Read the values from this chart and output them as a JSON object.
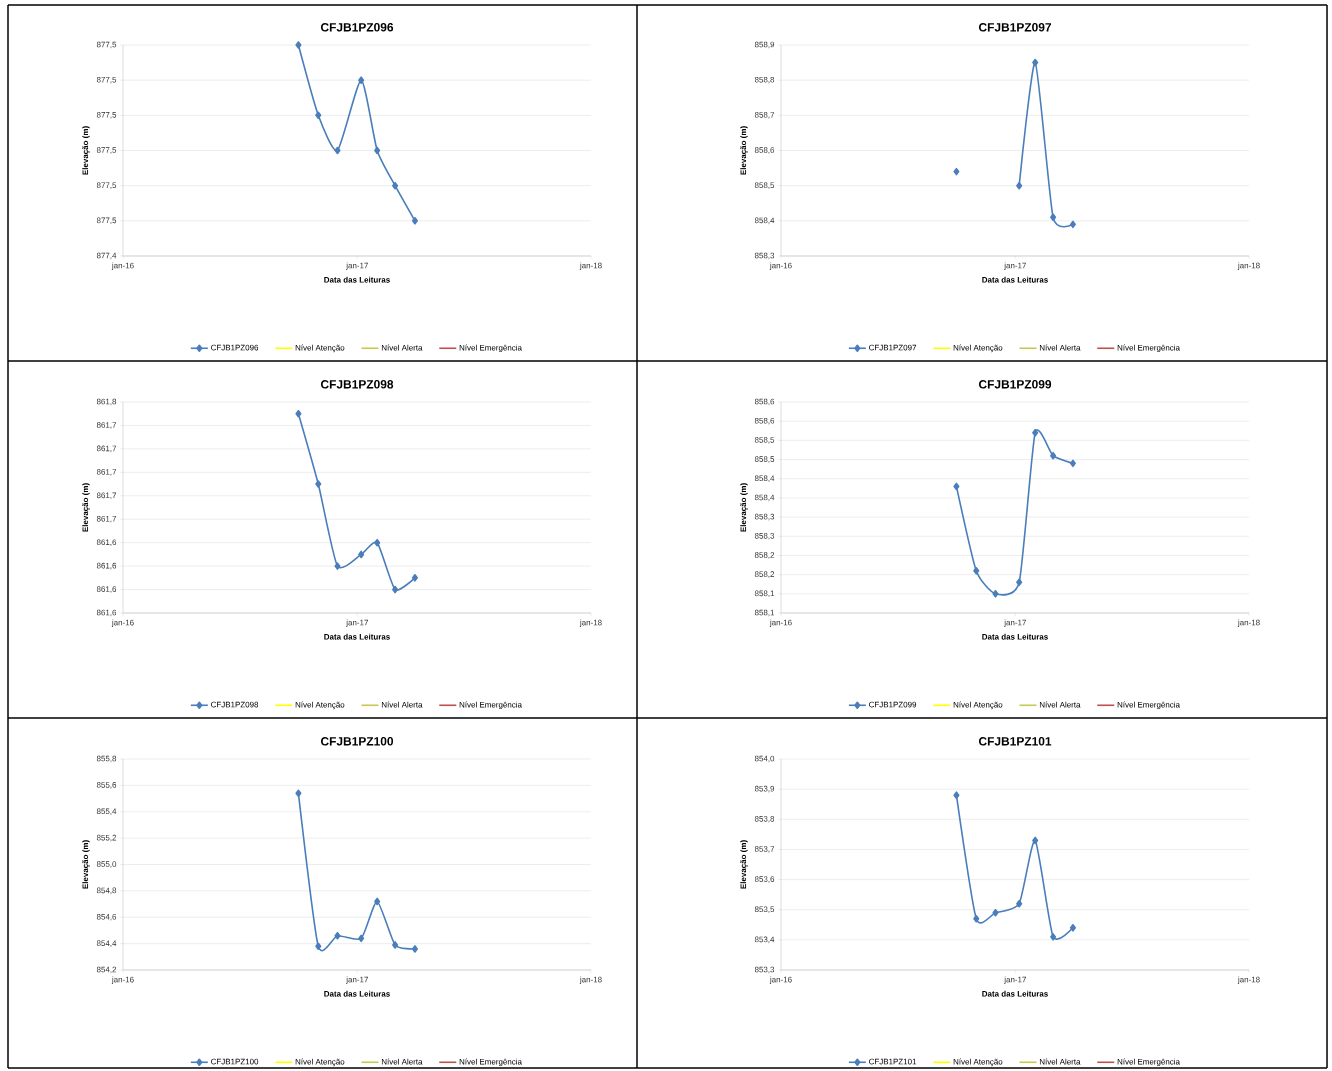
{
  "chart_data": [
    {
      "type": "line",
      "title": "CFJB1PZ096",
      "xlabel": "Data das Leituras",
      "ylabel": "Elevação (m)",
      "x": [
        "2016-10-01",
        "2016-11-01",
        "2016-12-01",
        "2017-01-07",
        "2017-02-01",
        "2017-03-01",
        "2017-04-01"
      ],
      "xlim": [
        "2016-01-01",
        "2018-01-01"
      ],
      "xticks": [
        {
          "value": "2016-01-01",
          "label": "jan-16"
        },
        {
          "value": "2017-01-01",
          "label": "jan-17"
        },
        {
          "value": "2018-01-01",
          "label": "jan-18"
        }
      ],
      "ylim": [
        877.44,
        877.5
      ],
      "yticks": [
        {
          "value": 877.44,
          "label": "877,4"
        },
        {
          "value": 877.45,
          "label": "877,5"
        },
        {
          "value": 877.46,
          "label": "877,5"
        },
        {
          "value": 877.47,
          "label": "877,5"
        },
        {
          "value": 877.48,
          "label": "877,5"
        },
        {
          "value": 877.49,
          "label": "877,5"
        },
        {
          "value": 877.5,
          "label": "877,5"
        }
      ],
      "grid": "y",
      "legend": "bottom",
      "marker": "diamond",
      "series": [
        {
          "name": "CFJB1PZ096",
          "color": "#4a7ebb",
          "values": [
            877.5,
            877.48,
            877.47,
            877.49,
            877.47,
            877.46,
            877.45
          ]
        },
        {
          "name": "Nível Atenção",
          "color": "#ffff00",
          "marker": "none",
          "values": [
            null,
            null,
            null,
            null,
            null,
            null,
            null
          ]
        },
        {
          "name": "Nível Alerta",
          "color": "#c8c850",
          "marker": "none",
          "values": [
            null,
            null,
            null,
            null,
            null,
            null,
            null
          ]
        },
        {
          "name": "Nível Emergência",
          "color": "#c0504d",
          "marker": "none",
          "values": [
            null,
            null,
            null,
            null,
            null,
            null,
            null
          ]
        }
      ]
    },
    {
      "type": "line",
      "title": "CFJB1PZ097",
      "xlabel": "Data das Leituras",
      "ylabel": "Elevação (m)",
      "x": [
        "2016-10-01",
        "2016-11-01",
        "2016-12-01",
        "2017-01-07",
        "2017-02-01",
        "2017-03-01",
        "2017-04-01"
      ],
      "xlim": [
        "2016-01-01",
        "2018-01-01"
      ],
      "xticks": [
        {
          "value": "2016-01-01",
          "label": "jan-16"
        },
        {
          "value": "2017-01-01",
          "label": "jan-17"
        },
        {
          "value": "2018-01-01",
          "label": "jan-18"
        }
      ],
      "ylim": [
        858.3,
        858.9
      ],
      "yticks": [
        {
          "value": 858.3,
          "label": "858,3"
        },
        {
          "value": 858.4,
          "label": "858,4"
        },
        {
          "value": 858.5,
          "label": "858,5"
        },
        {
          "value": 858.6,
          "label": "858,6"
        },
        {
          "value": 858.7,
          "label": "858,7"
        },
        {
          "value": 858.8,
          "label": "858,8"
        },
        {
          "value": 858.9,
          "label": "858,9"
        }
      ],
      "grid": "y",
      "legend": "bottom",
      "marker": "diamond",
      "series": [
        {
          "name": "CFJB1PZ097",
          "color": "#4a7ebb",
          "values": [
            858.54,
            null,
            null,
            858.5,
            858.85,
            858.41,
            858.39
          ]
        },
        {
          "name": "Nível Atenção",
          "color": "#ffff00",
          "marker": "none",
          "values": [
            null,
            null,
            null,
            null,
            null,
            null,
            null
          ]
        },
        {
          "name": "Nível Alerta",
          "color": "#c8c850",
          "marker": "none",
          "values": [
            null,
            null,
            null,
            null,
            null,
            null,
            null
          ]
        },
        {
          "name": "Nível Emergência",
          "color": "#c0504d",
          "marker": "none",
          "values": [
            null,
            null,
            null,
            null,
            null,
            null,
            null
          ]
        }
      ]
    },
    {
      "type": "line",
      "title": "CFJB1PZ098",
      "xlabel": "Data das Leituras",
      "ylabel": "Elevação (m)",
      "x": [
        "2016-10-01",
        "2016-11-01",
        "2016-12-01",
        "2017-01-07",
        "2017-02-01",
        "2017-03-01",
        "2017-04-01"
      ],
      "xlim": [
        "2016-01-01",
        "2018-01-01"
      ],
      "xticks": [
        {
          "value": "2016-01-01",
          "label": "jan-16"
        },
        {
          "value": "2017-01-01",
          "label": "jan-17"
        },
        {
          "value": "2018-01-01",
          "label": "jan-18"
        }
      ],
      "ylim": [
        861.58,
        861.76
      ],
      "yticks": [
        {
          "value": 861.58,
          "label": "861,6"
        },
        {
          "value": 861.6,
          "label": "861,6"
        },
        {
          "value": 861.62,
          "label": "861,6"
        },
        {
          "value": 861.64,
          "label": "861,6"
        },
        {
          "value": 861.66,
          "label": "861,7"
        },
        {
          "value": 861.68,
          "label": "861,7"
        },
        {
          "value": 861.7,
          "label": "861,7"
        },
        {
          "value": 861.72,
          "label": "861,7"
        },
        {
          "value": 861.74,
          "label": "861,7"
        },
        {
          "value": 861.76,
          "label": "861,8"
        }
      ],
      "grid": "y",
      "legend": "bottom",
      "marker": "diamond",
      "series": [
        {
          "name": "CFJB1PZ098",
          "color": "#4a7ebb",
          "values": [
            861.75,
            861.69,
            861.62,
            861.63,
            861.64,
            861.6,
            861.61
          ]
        },
        {
          "name": "Nível Atenção",
          "color": "#ffff00",
          "marker": "none",
          "values": [
            null,
            null,
            null,
            null,
            null,
            null,
            null
          ]
        },
        {
          "name": "Nível Alerta",
          "color": "#c8c850",
          "marker": "none",
          "values": [
            null,
            null,
            null,
            null,
            null,
            null,
            null
          ]
        },
        {
          "name": "Nível Emergência",
          "color": "#c0504d",
          "marker": "none",
          "values": [
            null,
            null,
            null,
            null,
            null,
            null,
            null
          ]
        }
      ]
    },
    {
      "type": "line",
      "title": "CFJB1PZ099",
      "xlabel": "Data das Leituras",
      "ylabel": "Elevação (m)",
      "x": [
        "2016-10-01",
        "2016-11-01",
        "2016-12-01",
        "2017-01-07",
        "2017-02-01",
        "2017-03-01",
        "2017-04-01"
      ],
      "xlim": [
        "2016-01-01",
        "2018-01-01"
      ],
      "xticks": [
        {
          "value": "2016-01-01",
          "label": "jan-16"
        },
        {
          "value": "2017-01-01",
          "label": "jan-17"
        },
        {
          "value": "2018-01-01",
          "label": "jan-18"
        }
      ],
      "ylim": [
        858.05,
        858.6
      ],
      "yticks": [
        {
          "value": 858.05,
          "label": "858,1"
        },
        {
          "value": 858.1,
          "label": "858,1"
        },
        {
          "value": 858.15,
          "label": "858,2"
        },
        {
          "value": 858.2,
          "label": "858,2"
        },
        {
          "value": 858.25,
          "label": "858,3"
        },
        {
          "value": 858.3,
          "label": "858,3"
        },
        {
          "value": 858.35,
          "label": "858,4"
        },
        {
          "value": 858.4,
          "label": "858,4"
        },
        {
          "value": 858.45,
          "label": "858,5"
        },
        {
          "value": 858.5,
          "label": "858,5"
        },
        {
          "value": 858.55,
          "label": "858,6"
        },
        {
          "value": 858.6,
          "label": "858,6"
        }
      ],
      "grid": "y",
      "legend": "bottom",
      "marker": "diamond",
      "series": [
        {
          "name": "CFJB1PZ099",
          "color": "#4a7ebb",
          "values": [
            858.38,
            858.16,
            858.1,
            858.13,
            858.52,
            858.46,
            858.44
          ]
        },
        {
          "name": "Nível Atenção",
          "color": "#ffff00",
          "marker": "none",
          "values": [
            null,
            null,
            null,
            null,
            null,
            null,
            null
          ]
        },
        {
          "name": "Nível Alerta",
          "color": "#c8c850",
          "marker": "none",
          "values": [
            null,
            null,
            null,
            null,
            null,
            null,
            null
          ]
        },
        {
          "name": "Nível Emergência",
          "color": "#c0504d",
          "marker": "none",
          "values": [
            null,
            null,
            null,
            null,
            null,
            null,
            null
          ]
        }
      ]
    },
    {
      "type": "line",
      "title": "CFJB1PZ100",
      "xlabel": "Data das Leituras",
      "ylabel": "Elevação (m)",
      "x": [
        "2016-10-01",
        "2016-11-01",
        "2016-12-01",
        "2017-01-07",
        "2017-02-01",
        "2017-03-01",
        "2017-04-01"
      ],
      "xlim": [
        "2016-01-01",
        "2018-01-01"
      ],
      "xticks": [
        {
          "value": "2016-01-01",
          "label": "jan-16"
        },
        {
          "value": "2017-01-01",
          "label": "jan-17"
        },
        {
          "value": "2018-01-01",
          "label": "jan-18"
        }
      ],
      "ylim": [
        854.2,
        855.8
      ],
      "yticks": [
        {
          "value": 854.2,
          "label": "854,2"
        },
        {
          "value": 854.4,
          "label": "854,4"
        },
        {
          "value": 854.6,
          "label": "854,6"
        },
        {
          "value": 854.8,
          "label": "854,8"
        },
        {
          "value": 855.0,
          "label": "855,0"
        },
        {
          "value": 855.2,
          "label": "855,2"
        },
        {
          "value": 855.4,
          "label": "855,4"
        },
        {
          "value": 855.6,
          "label": "855,6"
        },
        {
          "value": 855.8,
          "label": "855,8"
        }
      ],
      "grid": "y",
      "legend": "bottom",
      "marker": "diamond",
      "series": [
        {
          "name": "CFJB1PZ100",
          "color": "#4a7ebb",
          "values": [
            855.54,
            854.38,
            854.46,
            854.44,
            854.72,
            854.39,
            854.36
          ]
        },
        {
          "name": "Nível Atenção",
          "color": "#ffff00",
          "marker": "none",
          "values": [
            null,
            null,
            null,
            null,
            null,
            null,
            null
          ]
        },
        {
          "name": "Nível Alerta",
          "color": "#c8c850",
          "marker": "none",
          "values": [
            null,
            null,
            null,
            null,
            null,
            null,
            null
          ]
        },
        {
          "name": "Nível Emergência",
          "color": "#c0504d",
          "marker": "none",
          "values": [
            null,
            null,
            null,
            null,
            null,
            null,
            null
          ]
        }
      ]
    },
    {
      "type": "line",
      "title": "CFJB1PZ101",
      "xlabel": "Data das Leituras",
      "ylabel": "Elevação (m)",
      "x": [
        "2016-10-01",
        "2016-11-01",
        "2016-12-01",
        "2017-01-07",
        "2017-02-01",
        "2017-03-01",
        "2017-04-01"
      ],
      "xlim": [
        "2016-01-01",
        "2018-01-01"
      ],
      "xticks": [
        {
          "value": "2016-01-01",
          "label": "jan-16"
        },
        {
          "value": "2017-01-01",
          "label": "jan-17"
        },
        {
          "value": "2018-01-01",
          "label": "jan-18"
        }
      ],
      "ylim": [
        853.3,
        854.0
      ],
      "yticks": [
        {
          "value": 853.3,
          "label": "853,3"
        },
        {
          "value": 853.4,
          "label": "853,4"
        },
        {
          "value": 853.5,
          "label": "853,5"
        },
        {
          "value": 853.6,
          "label": "853,6"
        },
        {
          "value": 853.7,
          "label": "853,7"
        },
        {
          "value": 853.8,
          "label": "853,8"
        },
        {
          "value": 853.9,
          "label": "853,9"
        },
        {
          "value": 854.0,
          "label": "854,0"
        }
      ],
      "grid": "y",
      "legend": "bottom",
      "marker": "diamond",
      "series": [
        {
          "name": "CFJB1PZ101",
          "color": "#4a7ebb",
          "values": [
            853.88,
            853.47,
            853.49,
            853.52,
            853.73,
            853.41,
            853.44
          ]
        },
        {
          "name": "Nível Atenção",
          "color": "#ffff00",
          "marker": "none",
          "values": [
            null,
            null,
            null,
            null,
            null,
            null,
            null
          ]
        },
        {
          "name": "Nível Alerta",
          "color": "#c8c850",
          "marker": "none",
          "values": [
            null,
            null,
            null,
            null,
            null,
            null,
            null
          ]
        },
        {
          "name": "Nível Emergência",
          "color": "#c0504d",
          "marker": "none",
          "values": [
            null,
            null,
            null,
            null,
            null,
            null,
            null
          ]
        }
      ]
    }
  ]
}
